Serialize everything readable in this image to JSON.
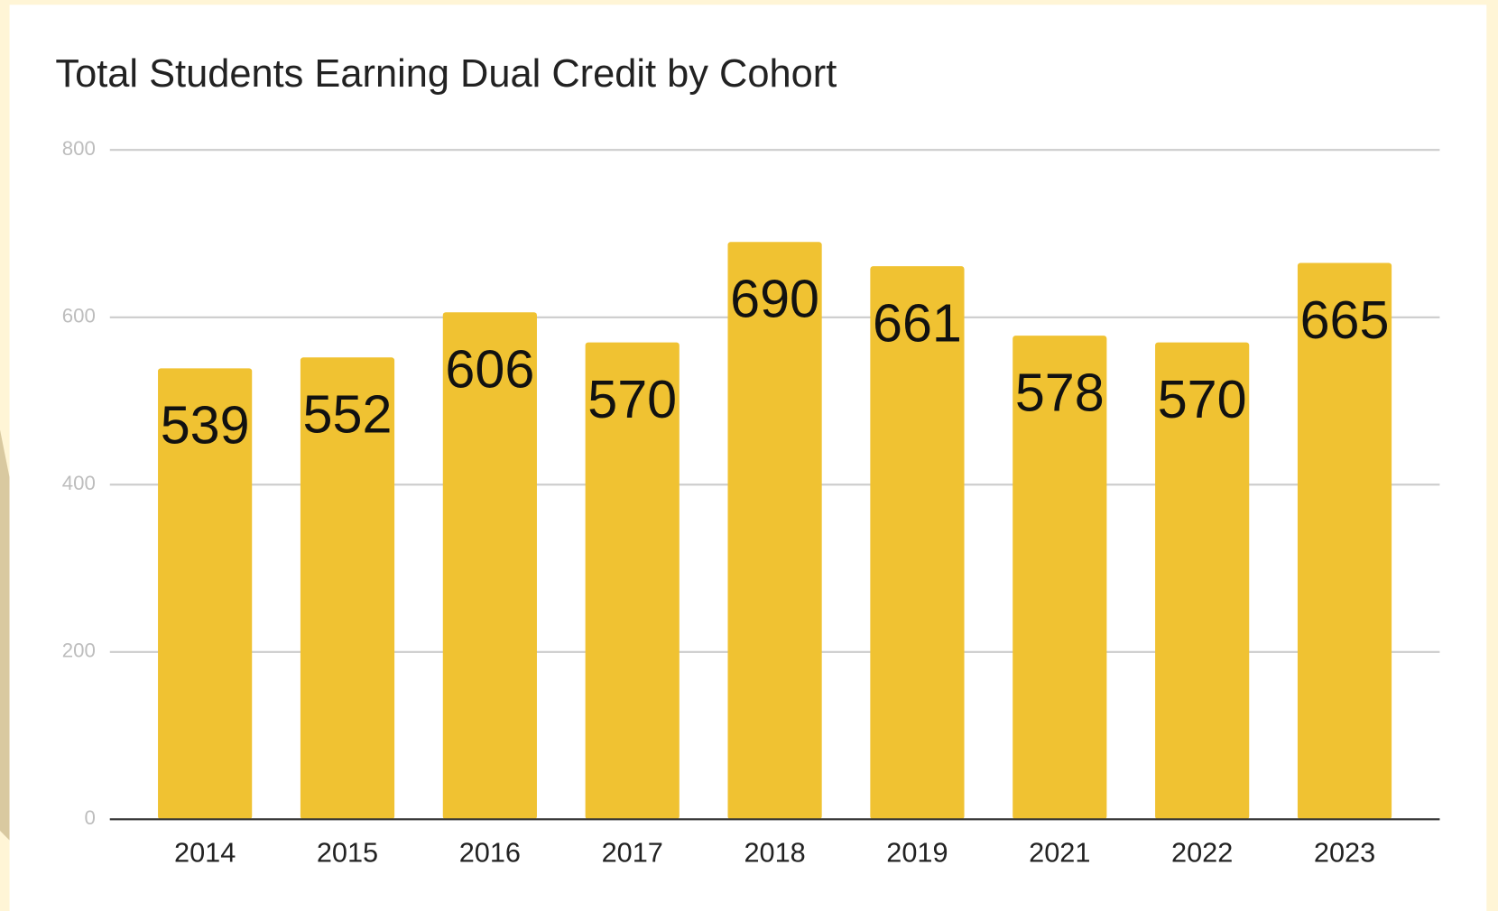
{
  "chart_data": {
    "type": "bar",
    "title": "Total Students Earning Dual Credit by Cohort",
    "categories": [
      "2014",
      "2015",
      "2016",
      "2017",
      "2018",
      "2019",
      "2021",
      "2022",
      "2023"
    ],
    "values": [
      539,
      552,
      606,
      570,
      690,
      661,
      578,
      570,
      665
    ],
    "color": "#f0c232",
    "ylim": [
      0,
      800
    ],
    "yticks": [
      0,
      200,
      400,
      600,
      800
    ],
    "grid": true,
    "data_labels": true
  }
}
